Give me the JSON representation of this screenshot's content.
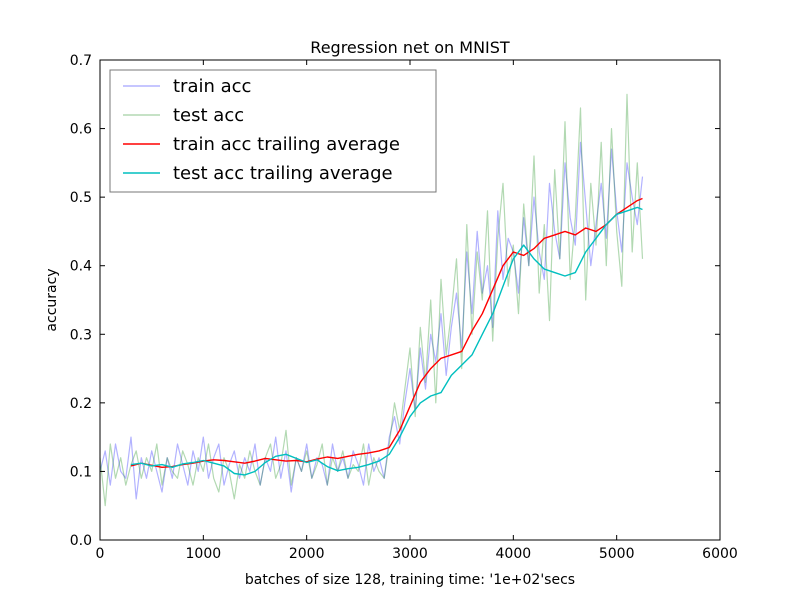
{
  "chart_data": {
    "type": "line",
    "title": "Regression net on MNIST",
    "xlabel": "batches of size 128, training time: '1e+02'secs",
    "ylabel": "accuracy",
    "xlim": [
      0,
      6000
    ],
    "ylim": [
      0.0,
      0.7
    ],
    "xticks": [
      {
        "value": 0,
        "label": "0"
      },
      {
        "value": 1000,
        "label": "1000"
      },
      {
        "value": 2000,
        "label": "2000"
      },
      {
        "value": 3000,
        "label": "3000"
      },
      {
        "value": 4000,
        "label": "4000"
      },
      {
        "value": 5000,
        "label": "5000"
      },
      {
        "value": 6000,
        "label": "6000"
      }
    ],
    "yticks": [
      {
        "value": 0.0,
        "label": "0.0"
      },
      {
        "value": 0.1,
        "label": "0.1"
      },
      {
        "value": 0.2,
        "label": "0.2"
      },
      {
        "value": 0.3,
        "label": "0.3"
      },
      {
        "value": 0.4,
        "label": "0.4"
      },
      {
        "value": 0.5,
        "label": "0.5"
      },
      {
        "value": 0.6,
        "label": "0.6"
      },
      {
        "value": 0.7,
        "label": "0.7"
      }
    ],
    "grid": false,
    "legend_position": "top-left",
    "series": [
      {
        "name": "train acc",
        "color": "#0000ff",
        "opacity": 0.3,
        "x": [
          0,
          50,
          100,
          150,
          200,
          250,
          300,
          350,
          400,
          450,
          500,
          550,
          600,
          650,
          700,
          750,
          800,
          850,
          900,
          950,
          1000,
          1050,
          1100,
          1150,
          1200,
          1250,
          1300,
          1350,
          1400,
          1450,
          1500,
          1550,
          1600,
          1650,
          1700,
          1750,
          1800,
          1850,
          1900,
          1950,
          2000,
          2050,
          2100,
          2150,
          2200,
          2250,
          2300,
          2350,
          2400,
          2450,
          2500,
          2550,
          2600,
          2650,
          2700,
          2750,
          2800,
          2850,
          2900,
          2950,
          3000,
          3050,
          3100,
          3150,
          3200,
          3250,
          3300,
          3350,
          3400,
          3450,
          3500,
          3550,
          3600,
          3650,
          3700,
          3750,
          3800,
          3850,
          3900,
          3950,
          4000,
          4050,
          4100,
          4150,
          4200,
          4250,
          4300,
          4350,
          4400,
          4450,
          4500,
          4550,
          4600,
          4650,
          4700,
          4750,
          4800,
          4850,
          4900,
          4950,
          5000,
          5050,
          5100,
          5150,
          5200,
          5250
        ],
        "y": [
          0.1,
          0.13,
          0.08,
          0.14,
          0.1,
          0.09,
          0.15,
          0.06,
          0.12,
          0.09,
          0.13,
          0.1,
          0.07,
          0.12,
          0.09,
          0.14,
          0.11,
          0.08,
          0.13,
          0.1,
          0.15,
          0.09,
          0.12,
          0.14,
          0.08,
          0.11,
          0.13,
          0.09,
          0.12,
          0.1,
          0.14,
          0.08,
          0.12,
          0.1,
          0.15,
          0.09,
          0.13,
          0.07,
          0.12,
          0.1,
          0.14,
          0.09,
          0.12,
          0.11,
          0.08,
          0.14,
          0.1,
          0.12,
          0.09,
          0.13,
          0.11,
          0.08,
          0.14,
          0.1,
          0.12,
          0.09,
          0.15,
          0.18,
          0.14,
          0.2,
          0.25,
          0.19,
          0.28,
          0.22,
          0.3,
          0.26,
          0.33,
          0.24,
          0.31,
          0.36,
          0.28,
          0.42,
          0.33,
          0.45,
          0.36,
          0.4,
          0.31,
          0.48,
          0.38,
          0.44,
          0.42,
          0.36,
          0.47,
          0.4,
          0.5,
          0.42,
          0.38,
          0.52,
          0.45,
          0.41,
          0.55,
          0.47,
          0.43,
          0.58,
          0.49,
          0.4,
          0.46,
          0.52,
          0.44,
          0.57,
          0.48,
          0.42,
          0.55,
          0.5,
          0.46,
          0.53
        ]
      },
      {
        "name": "test acc",
        "color": "#008000",
        "opacity": 0.3,
        "x": [
          0,
          50,
          100,
          150,
          200,
          250,
          300,
          350,
          400,
          450,
          500,
          550,
          600,
          650,
          700,
          750,
          800,
          850,
          900,
          950,
          1000,
          1050,
          1100,
          1150,
          1200,
          1250,
          1300,
          1350,
          1400,
          1450,
          1500,
          1550,
          1600,
          1650,
          1700,
          1750,
          1800,
          1850,
          1900,
          1950,
          2000,
          2050,
          2100,
          2150,
          2200,
          2250,
          2300,
          2350,
          2400,
          2450,
          2500,
          2550,
          2600,
          2650,
          2700,
          2750,
          2800,
          2850,
          2900,
          2950,
          3000,
          3050,
          3100,
          3150,
          3200,
          3250,
          3300,
          3350,
          3400,
          3450,
          3500,
          3550,
          3600,
          3650,
          3700,
          3750,
          3800,
          3850,
          3900,
          3950,
          4000,
          4050,
          4100,
          4150,
          4200,
          4250,
          4300,
          4350,
          4400,
          4450,
          4500,
          4550,
          4600,
          4650,
          4700,
          4750,
          4800,
          4850,
          4900,
          4950,
          5000,
          5050,
          5100,
          5150,
          5200,
          5250
        ],
        "y": [
          0.12,
          0.05,
          0.14,
          0.09,
          0.12,
          0.08,
          0.11,
          0.13,
          0.09,
          0.12,
          0.1,
          0.14,
          0.08,
          0.12,
          0.1,
          0.09,
          0.13,
          0.11,
          0.08,
          0.12,
          0.1,
          0.14,
          0.09,
          0.07,
          0.12,
          0.1,
          0.06,
          0.11,
          0.09,
          0.13,
          0.1,
          0.08,
          0.12,
          0.14,
          0.09,
          0.11,
          0.16,
          0.08,
          0.12,
          0.1,
          0.13,
          0.09,
          0.11,
          0.14,
          0.08,
          0.12,
          0.1,
          0.13,
          0.09,
          0.11,
          0.1,
          0.14,
          0.08,
          0.12,
          0.1,
          0.09,
          0.14,
          0.2,
          0.16,
          0.22,
          0.28,
          0.18,
          0.31,
          0.23,
          0.35,
          0.2,
          0.38,
          0.27,
          0.33,
          0.41,
          0.25,
          0.46,
          0.3,
          0.42,
          0.35,
          0.48,
          0.29,
          0.44,
          0.52,
          0.37,
          0.43,
          0.33,
          0.49,
          0.4,
          0.56,
          0.36,
          0.46,
          0.32,
          0.54,
          0.41,
          0.61,
          0.38,
          0.47,
          0.63,
          0.35,
          0.52,
          0.43,
          0.58,
          0.4,
          0.6,
          0.45,
          0.37,
          0.65,
          0.42,
          0.55,
          0.41
        ]
      },
      {
        "name": "train acc trailing average",
        "color": "#ff0000",
        "opacity": 1,
        "x": [
          300,
          400,
          500,
          600,
          700,
          800,
          900,
          1000,
          1100,
          1200,
          1300,
          1400,
          1500,
          1600,
          1700,
          1800,
          1900,
          2000,
          2100,
          2200,
          2300,
          2400,
          2500,
          2600,
          2700,
          2800,
          2900,
          3000,
          3100,
          3200,
          3300,
          3400,
          3500,
          3600,
          3700,
          3800,
          3900,
          4000,
          4100,
          4200,
          4300,
          4400,
          4500,
          4600,
          4700,
          4800,
          4900,
          5000,
          5100,
          5200,
          5250
        ],
        "y": [
          0.108,
          0.112,
          0.109,
          0.106,
          0.107,
          0.11,
          0.112,
          0.115,
          0.117,
          0.116,
          0.114,
          0.112,
          0.115,
          0.119,
          0.117,
          0.115,
          0.116,
          0.114,
          0.118,
          0.121,
          0.119,
          0.122,
          0.125,
          0.127,
          0.13,
          0.135,
          0.16,
          0.195,
          0.23,
          0.25,
          0.265,
          0.27,
          0.275,
          0.305,
          0.33,
          0.365,
          0.4,
          0.42,
          0.415,
          0.425,
          0.44,
          0.445,
          0.45,
          0.445,
          0.455,
          0.45,
          0.46,
          0.475,
          0.485,
          0.495,
          0.498
        ]
      },
      {
        "name": "test acc trailing average",
        "color": "#00bfbf",
        "opacity": 1,
        "x": [
          300,
          400,
          500,
          600,
          700,
          800,
          900,
          1000,
          1100,
          1200,
          1300,
          1400,
          1500,
          1600,
          1700,
          1800,
          1900,
          2000,
          2100,
          2200,
          2300,
          2400,
          2500,
          2600,
          2700,
          2800,
          2900,
          3000,
          3100,
          3200,
          3300,
          3400,
          3500,
          3600,
          3700,
          3800,
          3900,
          4000,
          4100,
          4200,
          4300,
          4400,
          4500,
          4600,
          4700,
          4800,
          4900,
          5000,
          5100,
          5200,
          5250
        ],
        "y": [
          0.11,
          0.112,
          0.108,
          0.11,
          0.106,
          0.111,
          0.113,
          0.116,
          0.112,
          0.108,
          0.097,
          0.095,
          0.1,
          0.113,
          0.122,
          0.125,
          0.119,
          0.113,
          0.117,
          0.107,
          0.101,
          0.104,
          0.106,
          0.11,
          0.115,
          0.125,
          0.15,
          0.18,
          0.2,
          0.21,
          0.215,
          0.24,
          0.255,
          0.27,
          0.3,
          0.33,
          0.37,
          0.41,
          0.43,
          0.41,
          0.395,
          0.39,
          0.385,
          0.39,
          0.42,
          0.44,
          0.46,
          0.475,
          0.48,
          0.485,
          0.482
        ]
      }
    ]
  }
}
